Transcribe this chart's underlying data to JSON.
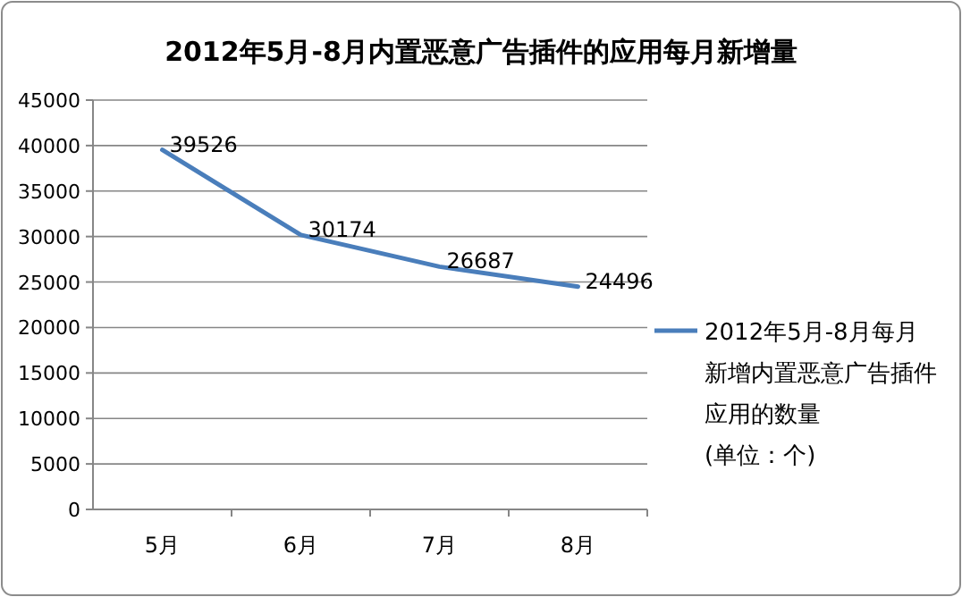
{
  "chart_data": {
    "type": "line",
    "title": "2012年5月-8月内置恶意广告插件的应用每月新增量",
    "categories": [
      "5月",
      "6月",
      "7月",
      "8月"
    ],
    "series": [
      {
        "name": "2012年5月-8月每月新增内置恶意广告插件应用的数量 (单位：个)",
        "color": "#4a7ebb",
        "values": [
          39526,
          30174,
          26687,
          24496
        ]
      }
    ],
    "ylim": [
      0,
      45000
    ],
    "yticks": [
      0,
      5000,
      10000,
      15000,
      20000,
      25000,
      30000,
      35000,
      40000,
      45000
    ],
    "grid": "y",
    "legend": "right",
    "data_labels": true,
    "marker": "none",
    "line_style": "solid"
  }
}
